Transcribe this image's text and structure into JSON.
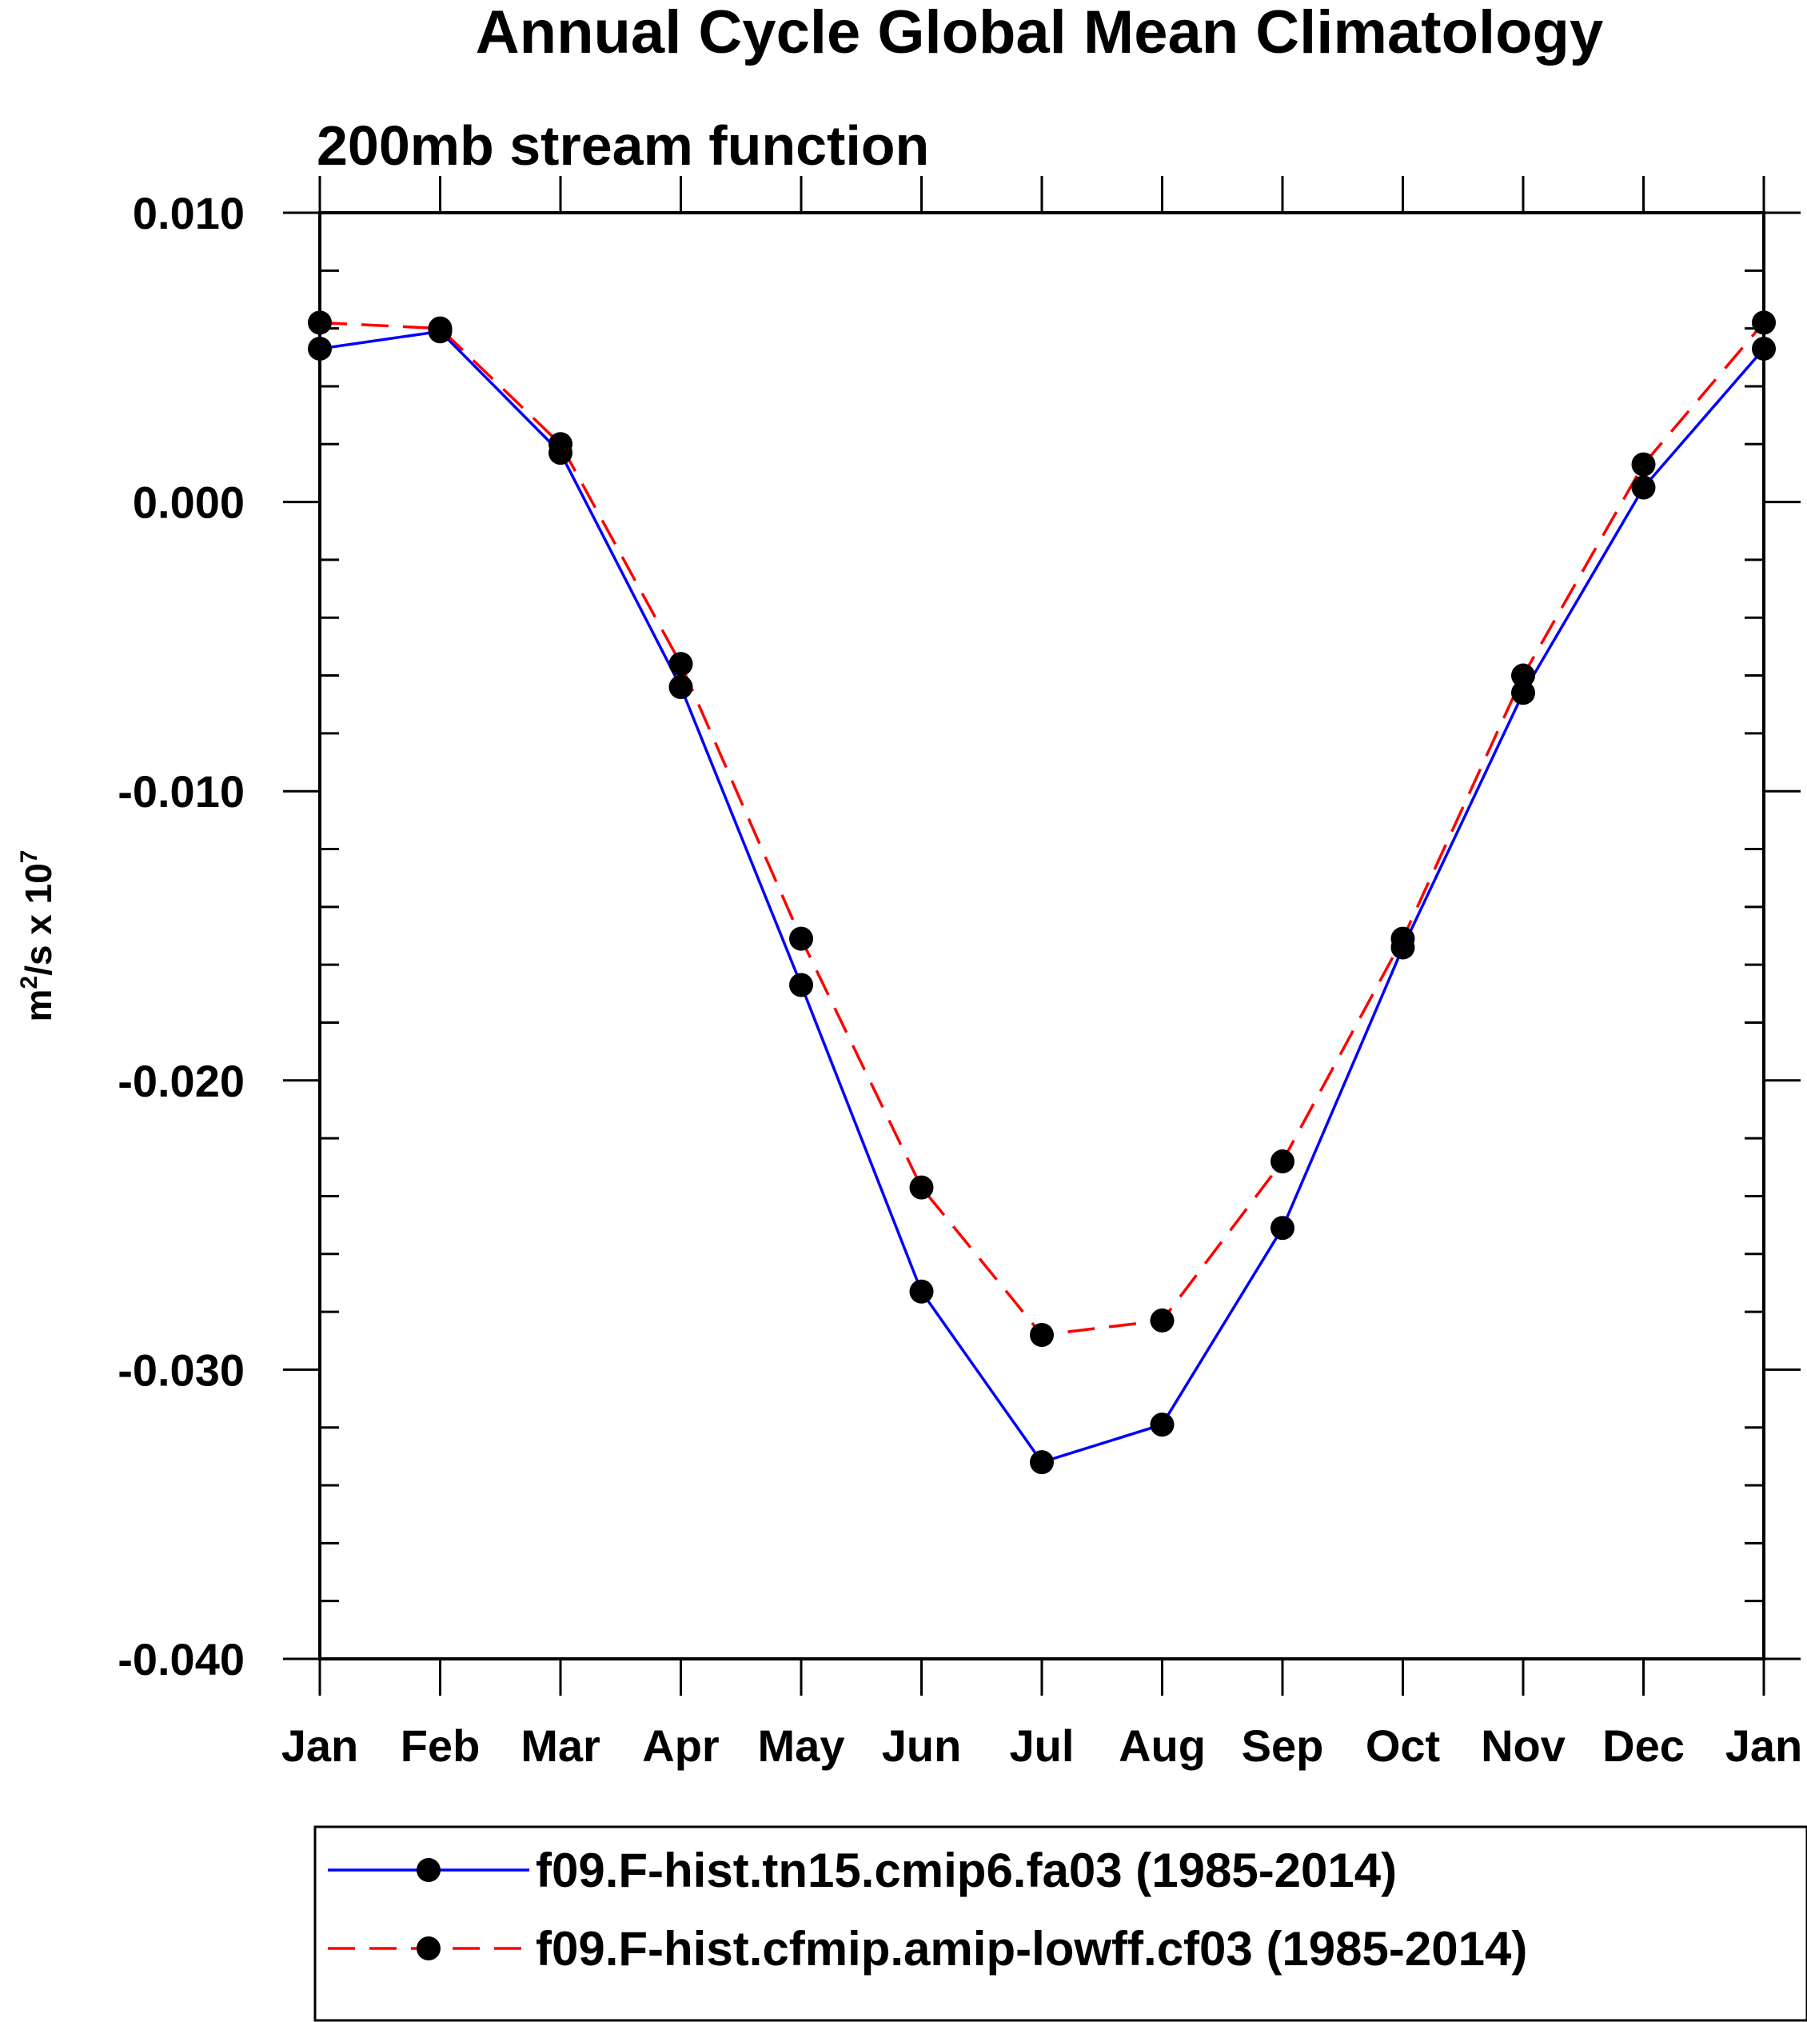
{
  "chart_data": {
    "type": "line",
    "title": "Annual Cycle Global Mean Climatology",
    "subtitle": "200mb stream function",
    "xlabel": "",
    "ylabel": {
      "base": "m",
      "sup1": "2",
      "middle": "/s x 10",
      "sup2": "7"
    },
    "categories": [
      "Jan",
      "Feb",
      "Mar",
      "Apr",
      "May",
      "Jun",
      "Jul",
      "Aug",
      "Sep",
      "Oct",
      "Nov",
      "Dec",
      "Jan"
    ],
    "ylim": [
      -0.04,
      0.01
    ],
    "yticks": [
      0.01,
      0.0,
      -0.01,
      -0.02,
      -0.03,
      -0.04
    ],
    "ytick_labels": [
      "0.010",
      "0.000",
      "-0.010",
      "-0.020",
      "-0.030",
      "-0.040"
    ],
    "yminor_step": 0.002,
    "grid": false,
    "legend_position": "bottom",
    "series": [
      {
        "name": "f09.F-hist.tn15.cmip6.fa03 (1985-2014)",
        "color": "#0000ff",
        "style": "solid",
        "marker": "circle",
        "values": [
          0.0053,
          0.0059,
          0.0017,
          -0.0064,
          -0.0167,
          -0.0273,
          -0.0332,
          -0.0319,
          -0.0251,
          -0.0154,
          -0.0066,
          0.0005,
          0.0053
        ]
      },
      {
        "name": "f09.F-hist.cfmip.amip-lowff.cf03 (1985-2014)",
        "color": "#ff0000",
        "style": "dashed",
        "marker": "circle",
        "values": [
          0.0062,
          0.006,
          0.002,
          -0.0056,
          -0.0151,
          -0.0237,
          -0.0288,
          -0.0283,
          -0.0228,
          -0.0151,
          -0.006,
          0.0013,
          0.0062
        ]
      }
    ]
  }
}
